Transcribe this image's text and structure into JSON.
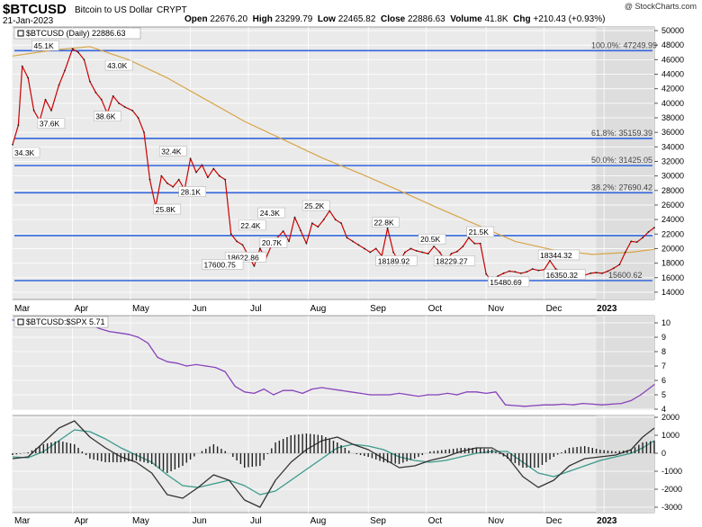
{
  "header": {
    "symbol": "$BTCUSD",
    "name": "Bitcoin to US Dollar",
    "exchange": "CRYPT",
    "date": "21-Jan-2023",
    "source": "@ StockCharts.com",
    "open_label": "Open",
    "open": "22676.20",
    "high_label": "High",
    "high": "23299.79",
    "low_label": "Low",
    "low": "22465.82",
    "close_label": "Close",
    "close": "22886.63",
    "volume_label": "Volume",
    "volume": "41.8K",
    "chg_label": "Chg",
    "chg": "+210.43 (+0.93%)"
  },
  "colors": {
    "price": "#cc0000",
    "ma": "#d8a548",
    "fib": "#3366dd",
    "ratio": "#8844bb",
    "macd": "#333333",
    "signal": "#3a9a8a",
    "hist": "#222222"
  },
  "chart_data": [
    {
      "type": "line",
      "panel": "price",
      "legend": "$BTCUSD (Daily) 22886.63",
      "x_ticks": [
        "Mar",
        "Apr",
        "May",
        "Jun",
        "Jul",
        "Aug",
        "Sep",
        "Oct",
        "Nov",
        "Dec",
        "2023"
      ],
      "y_ticks": [
        14000,
        16000,
        18000,
        20000,
        22000,
        24000,
        26000,
        28000,
        30000,
        32000,
        34000,
        36000,
        38000,
        40000,
        42000,
        44000,
        46000,
        48000,
        50000
      ],
      "ylim": [
        13000,
        50500
      ],
      "series": [
        {
          "name": "$BTCUSD",
          "x": [
            0,
            3,
            5,
            8,
            11,
            14,
            17,
            20,
            24,
            27,
            31,
            34,
            37,
            40,
            43,
            46,
            49,
            52,
            55,
            58,
            62,
            65,
            68,
            71,
            74,
            77,
            80,
            83,
            86,
            89,
            92,
            95,
            98,
            101,
            104,
            107,
            110,
            113,
            116,
            119,
            122,
            125,
            128,
            131,
            134,
            137,
            140,
            143,
            146,
            149,
            152,
            155,
            158,
            161,
            164,
            167,
            170,
            173,
            176,
            179,
            182,
            185,
            188,
            191,
            194,
            197,
            200,
            203,
            206,
            209,
            212,
            215,
            218,
            221,
            224,
            227,
            230,
            233,
            236,
            239,
            242,
            245,
            248,
            251,
            254,
            257,
            260,
            263,
            266,
            269,
            272,
            275,
            278,
            281,
            284,
            287,
            290,
            293,
            296,
            299,
            302,
            305,
            308,
            311,
            314,
            317,
            320,
            323,
            326,
            329,
            332
          ],
          "y": [
            34300,
            37000,
            45100,
            43500,
            39000,
            37600,
            40500,
            39000,
            42500,
            44500,
            47500,
            47000,
            46000,
            43000,
            41500,
            40500,
            38600,
            41000,
            40000,
            39500,
            39000,
            38000,
            36000,
            29500,
            25800,
            30000,
            29000,
            28500,
            29500,
            28100,
            32400,
            30500,
            31500,
            29800,
            31000,
            30000,
            29500,
            22000,
            21000,
            20500,
            19000,
            17600,
            20000,
            18622,
            20500,
            21500,
            22400,
            21000,
            24300,
            22500,
            20700,
            23500,
            23000,
            24000,
            25200,
            24000,
            23500,
            21500,
            21000,
            20500,
            20000,
            19500,
            20000,
            19000,
            22800,
            19500,
            18190,
            19500,
            20000,
            19700,
            19500,
            19300,
            20300,
            19500,
            18230,
            19300,
            19600,
            20300,
            21500,
            20700,
            20700,
            16500,
            15480,
            16200,
            16600,
            16900,
            16800,
            16600,
            16800,
            17200,
            17000,
            17100,
            18344,
            17200,
            16900,
            16800,
            16700,
            16800,
            16350,
            16600,
            16700,
            16600,
            16900,
            17300,
            17800,
            19500,
            21000,
            20900,
            21500,
            22300,
            22887
          ]
        },
        {
          "name": "200-day MA",
          "x": [
            0,
            20,
            40,
            60,
            80,
            100,
            120,
            140,
            160,
            180,
            200,
            220,
            240,
            260,
            280,
            300,
            320,
            332
          ],
          "y": [
            46500,
            47300,
            47800,
            46000,
            43500,
            40500,
            37500,
            35000,
            32500,
            30300,
            28000,
            25600,
            23300,
            21000,
            19800,
            19200,
            19500,
            19900
          ]
        }
      ],
      "horizontal_lines": [
        47249,
        35159,
        31425,
        27690,
        21800,
        15600
      ],
      "fib_labels": [
        "100.0%: 47249.99",
        "61.8%: 35159.39",
        "50.0%: 31425.05",
        "38.2%: 27690.42",
        "15600.62"
      ],
      "annotations": [
        "45.1K",
        "43.0K",
        "37.6K",
        "38.6K",
        "34.3K",
        "32.4K",
        "28.1K",
        "25.8K",
        "22.4K",
        "24.3K",
        "25.2K",
        "22.8K",
        "20.5K",
        "21.5K",
        "20.7K",
        "18622.86",
        "17600.75",
        "18189.92",
        "18229.27",
        "18344.32",
        "16350.32",
        "15480.69"
      ]
    },
    {
      "type": "line",
      "panel": "ratio",
      "legend": "$BTCUSD:$SPX 5.71",
      "y_ticks": [
        4,
        5,
        6,
        7,
        8,
        9,
        10
      ],
      "ylim": [
        4,
        10.5
      ],
      "series": [
        {
          "name": "$BTCUSD:$SPX",
          "x": [
            0,
            5,
            10,
            15,
            20,
            25,
            30,
            35,
            40,
            45,
            50,
            55,
            60,
            65,
            70,
            75,
            80,
            85,
            90,
            95,
            100,
            105,
            110,
            115,
            120,
            125,
            130,
            135,
            140,
            145,
            150,
            155,
            160,
            165,
            170,
            175,
            180,
            185,
            190,
            195,
            200,
            205,
            210,
            215,
            220,
            225,
            230,
            235,
            240,
            245,
            250,
            255,
            260,
            265,
            270,
            275,
            280,
            285,
            290,
            295,
            300,
            305,
            310,
            315,
            320,
            325,
            332
          ],
          "y": [
            10.2,
            10.1,
            10.3,
            10.2,
            10.0,
            10.1,
            10.4,
            10.3,
            9.9,
            9.6,
            9.4,
            9.3,
            9.2,
            9.0,
            8.6,
            7.6,
            7.3,
            7.2,
            7.0,
            7.1,
            7.0,
            6.9,
            6.6,
            5.6,
            5.2,
            5.1,
            5.4,
            5.0,
            5.3,
            5.3,
            5.1,
            5.4,
            5.5,
            5.4,
            5.3,
            5.2,
            5.1,
            5.0,
            5.0,
            5.0,
            5.1,
            5.0,
            4.9,
            5.0,
            5.0,
            5.1,
            5.0,
            5.2,
            5.2,
            5.1,
            5.2,
            4.3,
            4.25,
            4.2,
            4.25,
            4.3,
            4.3,
            4.35,
            4.3,
            4.4,
            4.35,
            4.3,
            4.35,
            4.4,
            4.6,
            5.0,
            5.71
          ]
        }
      ]
    },
    {
      "type": "line",
      "panel": "macd",
      "y_ticks": [
        -3000,
        -2000,
        -1000,
        0,
        1000,
        2000
      ],
      "ylim": [
        -3300,
        2100
      ],
      "series": [
        {
          "name": "MACD",
          "x": [
            0,
            8,
            16,
            24,
            32,
            40,
            48,
            56,
            64,
            72,
            80,
            88,
            96,
            104,
            112,
            120,
            128,
            136,
            144,
            152,
            160,
            168,
            176,
            184,
            192,
            200,
            208,
            216,
            224,
            232,
            240,
            248,
            256,
            264,
            272,
            280,
            288,
            296,
            304,
            312,
            320,
            326,
            332
          ],
          "y": [
            -300,
            -200,
            600,
            1400,
            1800,
            900,
            300,
            -200,
            -500,
            -1100,
            -2300,
            -2500,
            -1900,
            -1200,
            -1500,
            -2600,
            -3000,
            -1500,
            -500,
            200,
            700,
            900,
            500,
            200,
            -300,
            -800,
            -700,
            -400,
            -200,
            100,
            300,
            300,
            -200,
            -1300,
            -1900,
            -1500,
            -700,
            -300,
            -200,
            -100,
            200,
            900,
            1400
          ]
        },
        {
          "name": "Signal",
          "x": [
            0,
            8,
            16,
            24,
            32,
            40,
            48,
            56,
            64,
            72,
            80,
            88,
            96,
            104,
            112,
            120,
            128,
            136,
            144,
            152,
            160,
            168,
            176,
            184,
            192,
            200,
            208,
            216,
            224,
            232,
            240,
            248,
            256,
            264,
            272,
            280,
            288,
            296,
            304,
            312,
            320,
            326,
            332
          ],
          "y": [
            -200,
            -250,
            100,
            700,
            1300,
            1200,
            800,
            300,
            -100,
            -500,
            -1200,
            -1800,
            -1900,
            -1700,
            -1500,
            -1800,
            -2300,
            -2100,
            -1500,
            -900,
            -300,
            300,
            500,
            400,
            200,
            -200,
            -400,
            -500,
            -400,
            -200,
            0,
            100,
            100,
            -500,
            -1100,
            -1300,
            -1000,
            -700,
            -400,
            -200,
            0,
            300,
            700
          ]
        }
      ]
    }
  ],
  "x_labels": [
    "Mar",
    "Apr",
    "May",
    "Jun",
    "Jul",
    "Aug",
    "Sep",
    "Oct",
    "Nov",
    "Dec",
    "2023"
  ]
}
